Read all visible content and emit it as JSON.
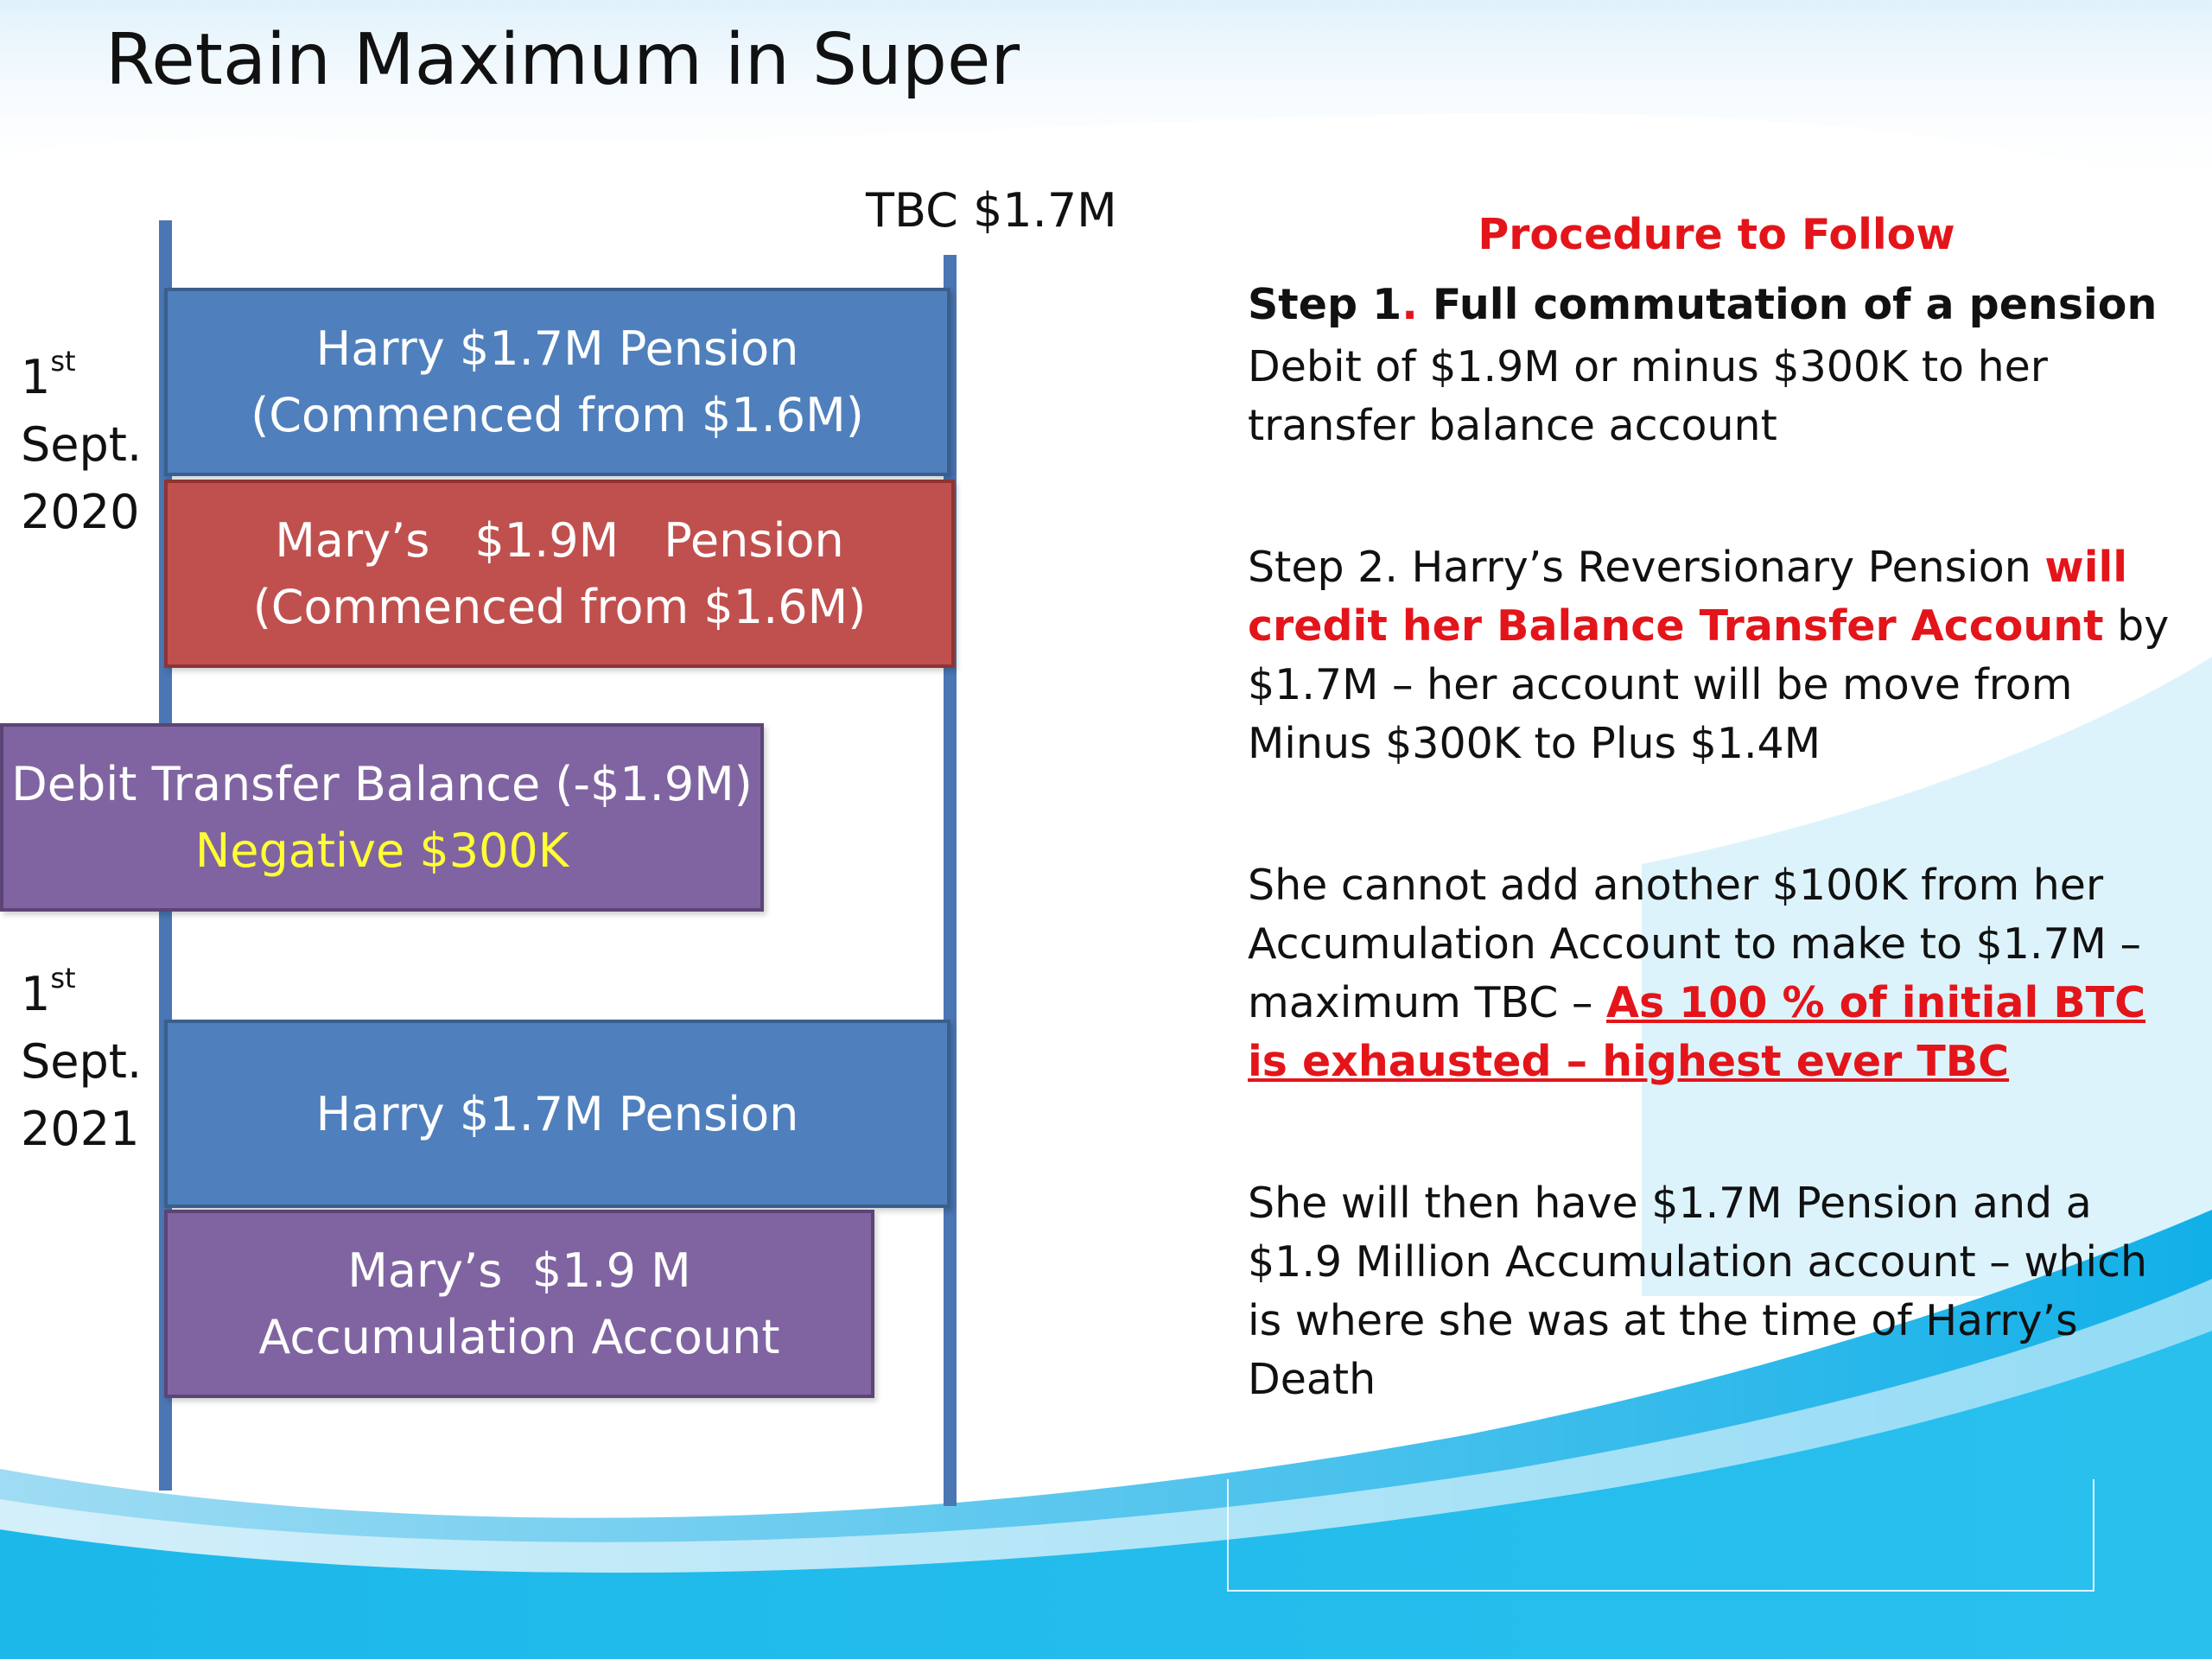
{
  "title": "Retain Maximum in Super",
  "tbc_label": "TBC $1.7M",
  "dates": [
    {
      "day": "1",
      "suffix": "st",
      "month": "Sept.",
      "year": "2020"
    },
    {
      "day": "1",
      "suffix": "st",
      "month": "Sept.",
      "year": "2021"
    }
  ],
  "boxes": {
    "harry_pension_2020": {
      "line1": "Harry $1.7M Pension",
      "line2": "(Commenced from $1.6M)"
    },
    "mary_pension_2020": {
      "part1": "Mary’s",
      "part2": "$1.9M",
      "part3": "Pension",
      "line2": "(Commenced from $1.6M)"
    },
    "debit_transfer": {
      "line1": "Debit Transfer Balance (-$1.9M)",
      "line2": "Negative $300K"
    },
    "harry_pension_2021": {
      "line1": "Harry $1.7M Pension"
    },
    "mary_accumulation": {
      "line1": "Mary’s  $1.9 M",
      "line2": "Accumulation Account"
    }
  },
  "procedure": {
    "heading": "Procedure to Follow",
    "step1": {
      "label": "Step 1",
      "dot": ".",
      "title": " Full commutation of a pension",
      "text": "Debit of $1.9M or minus $300K to her transfer balance account"
    },
    "step2": {
      "prefix": "Step 2. Harry’s Reversionary Pension ",
      "highlight": "will credit her Balance Transfer Account",
      "suffix": " by $1.7M – her account will be move from Minus $300K to Plus $1.4M"
    },
    "para3": {
      "text": "She cannot add another $100K from her Accumulation Account to make to $1.7M – maximum TBC – ",
      "highlight": "As 100 % of initial BTC is exhausted – highest ever TBC"
    },
    "para4": {
      "text": "She will then have $1.7M Pension and a $1.9 Million Accumulation account – which is where she was at the time of Harry’s Death"
    }
  }
}
